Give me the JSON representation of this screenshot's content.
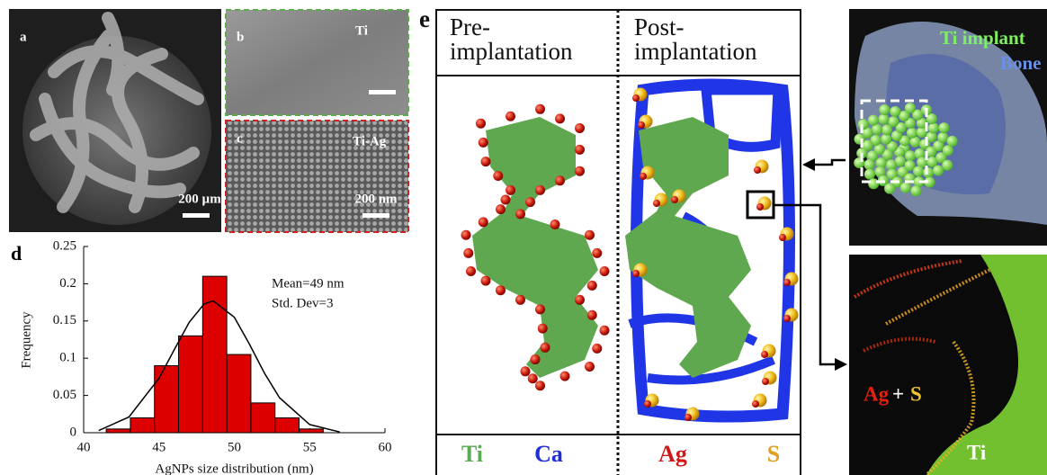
{
  "panels": {
    "a": {
      "label": "a",
      "scale_bar": "200 µm"
    },
    "b": {
      "label": "b",
      "material": "Ti"
    },
    "c": {
      "label": "c",
      "material": "Ti-Ag",
      "scale_bar": "200 nm"
    },
    "e": {
      "label": "e",
      "pre": [
        "Pre-",
        "implantation"
      ],
      "post": [
        "Post-",
        "implantation"
      ],
      "legend": [
        "Ti",
        "Ca",
        "Ag",
        "S"
      ]
    },
    "ct": {
      "implant": "Ti implant",
      "bone": "Bone"
    },
    "eds": {
      "ag": "Ag",
      "plus": "+",
      "s": "S",
      "ti": "Ti"
    }
  },
  "chart_data": {
    "type": "histogram",
    "panel_label": "d",
    "x_label": "AgNPs size distribution (nm)",
    "y_label": "Frequency",
    "annotations": [
      "Mean=49 nm",
      "Std. Dev=3"
    ],
    "bins": [
      41.5,
      43.1,
      44.7,
      46.3,
      47.9,
      49.5,
      51.1,
      52.7,
      54.3,
      55.9
    ],
    "values": [
      0.005,
      0.02,
      0.09,
      0.13,
      0.21,
      0.105,
      0.04,
      0.02,
      0.005
    ],
    "color": "#dd0000",
    "fit_curve": {
      "x": [
        41,
        43,
        45,
        46,
        47,
        48,
        48.6,
        50,
        51,
        52,
        53,
        55,
        57
      ],
      "y": [
        0.003,
        0.021,
        0.073,
        0.111,
        0.148,
        0.173,
        0.177,
        0.155,
        0.119,
        0.08,
        0.047,
        0.011,
        0.001
      ],
      "color": "#000000"
    },
    "xlim": [
      40,
      60
    ],
    "xticks": [
      40,
      45,
      50,
      55,
      60
    ],
    "ylim": [
      0,
      0.25
    ],
    "yticks": [
      0,
      0.05,
      0.1,
      0.15,
      0.2,
      0.25
    ]
  }
}
